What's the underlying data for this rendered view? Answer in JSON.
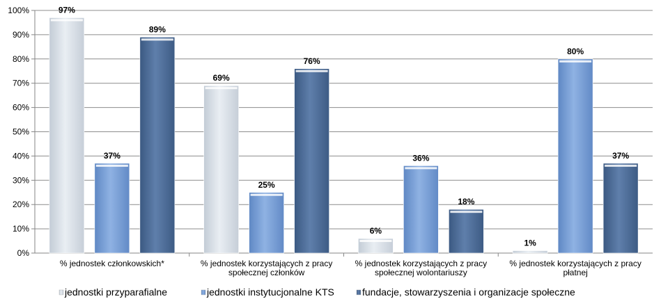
{
  "chart_data": {
    "type": "bar",
    "title": "",
    "xlabel": "",
    "ylabel": "",
    "ylim": [
      0,
      100
    ],
    "y_ticks": [
      "0%",
      "10%",
      "20%",
      "30%",
      "40%",
      "50%",
      "60%",
      "70%",
      "80%",
      "90%",
      "100%"
    ],
    "grid": true,
    "legend_position": "bottom",
    "categories": [
      [
        "% jednostek członkowskich*"
      ],
      [
        "% jednostek korzystających z pracy",
        "społecznej członków"
      ],
      [
        "% jednostek korzystających z pracy",
        "społecznej wolontariuszy"
      ],
      [
        "% jednostek korzystających z pracy",
        "płatnej"
      ]
    ],
    "series": [
      {
        "name": "jednostki przyparafialne",
        "color": "#dce3ea",
        "values": [
          97,
          69,
          6,
          1
        ],
        "labels": [
          "97%",
          "69%",
          "6%",
          "1%"
        ]
      },
      {
        "name": "jednostki instytucjonalne KTS",
        "color": "#7da3d8",
        "values": [
          37,
          25,
          36,
          80
        ],
        "labels": [
          "37%",
          "25%",
          "36%",
          "80%"
        ]
      },
      {
        "name": "fundacje, stowarzyszenia i organizacje społeczne",
        "color": "#4f6f9a",
        "values": [
          89,
          76,
          18,
          37
        ],
        "labels": [
          "89%",
          "76%",
          "18%",
          "37%"
        ]
      }
    ]
  }
}
